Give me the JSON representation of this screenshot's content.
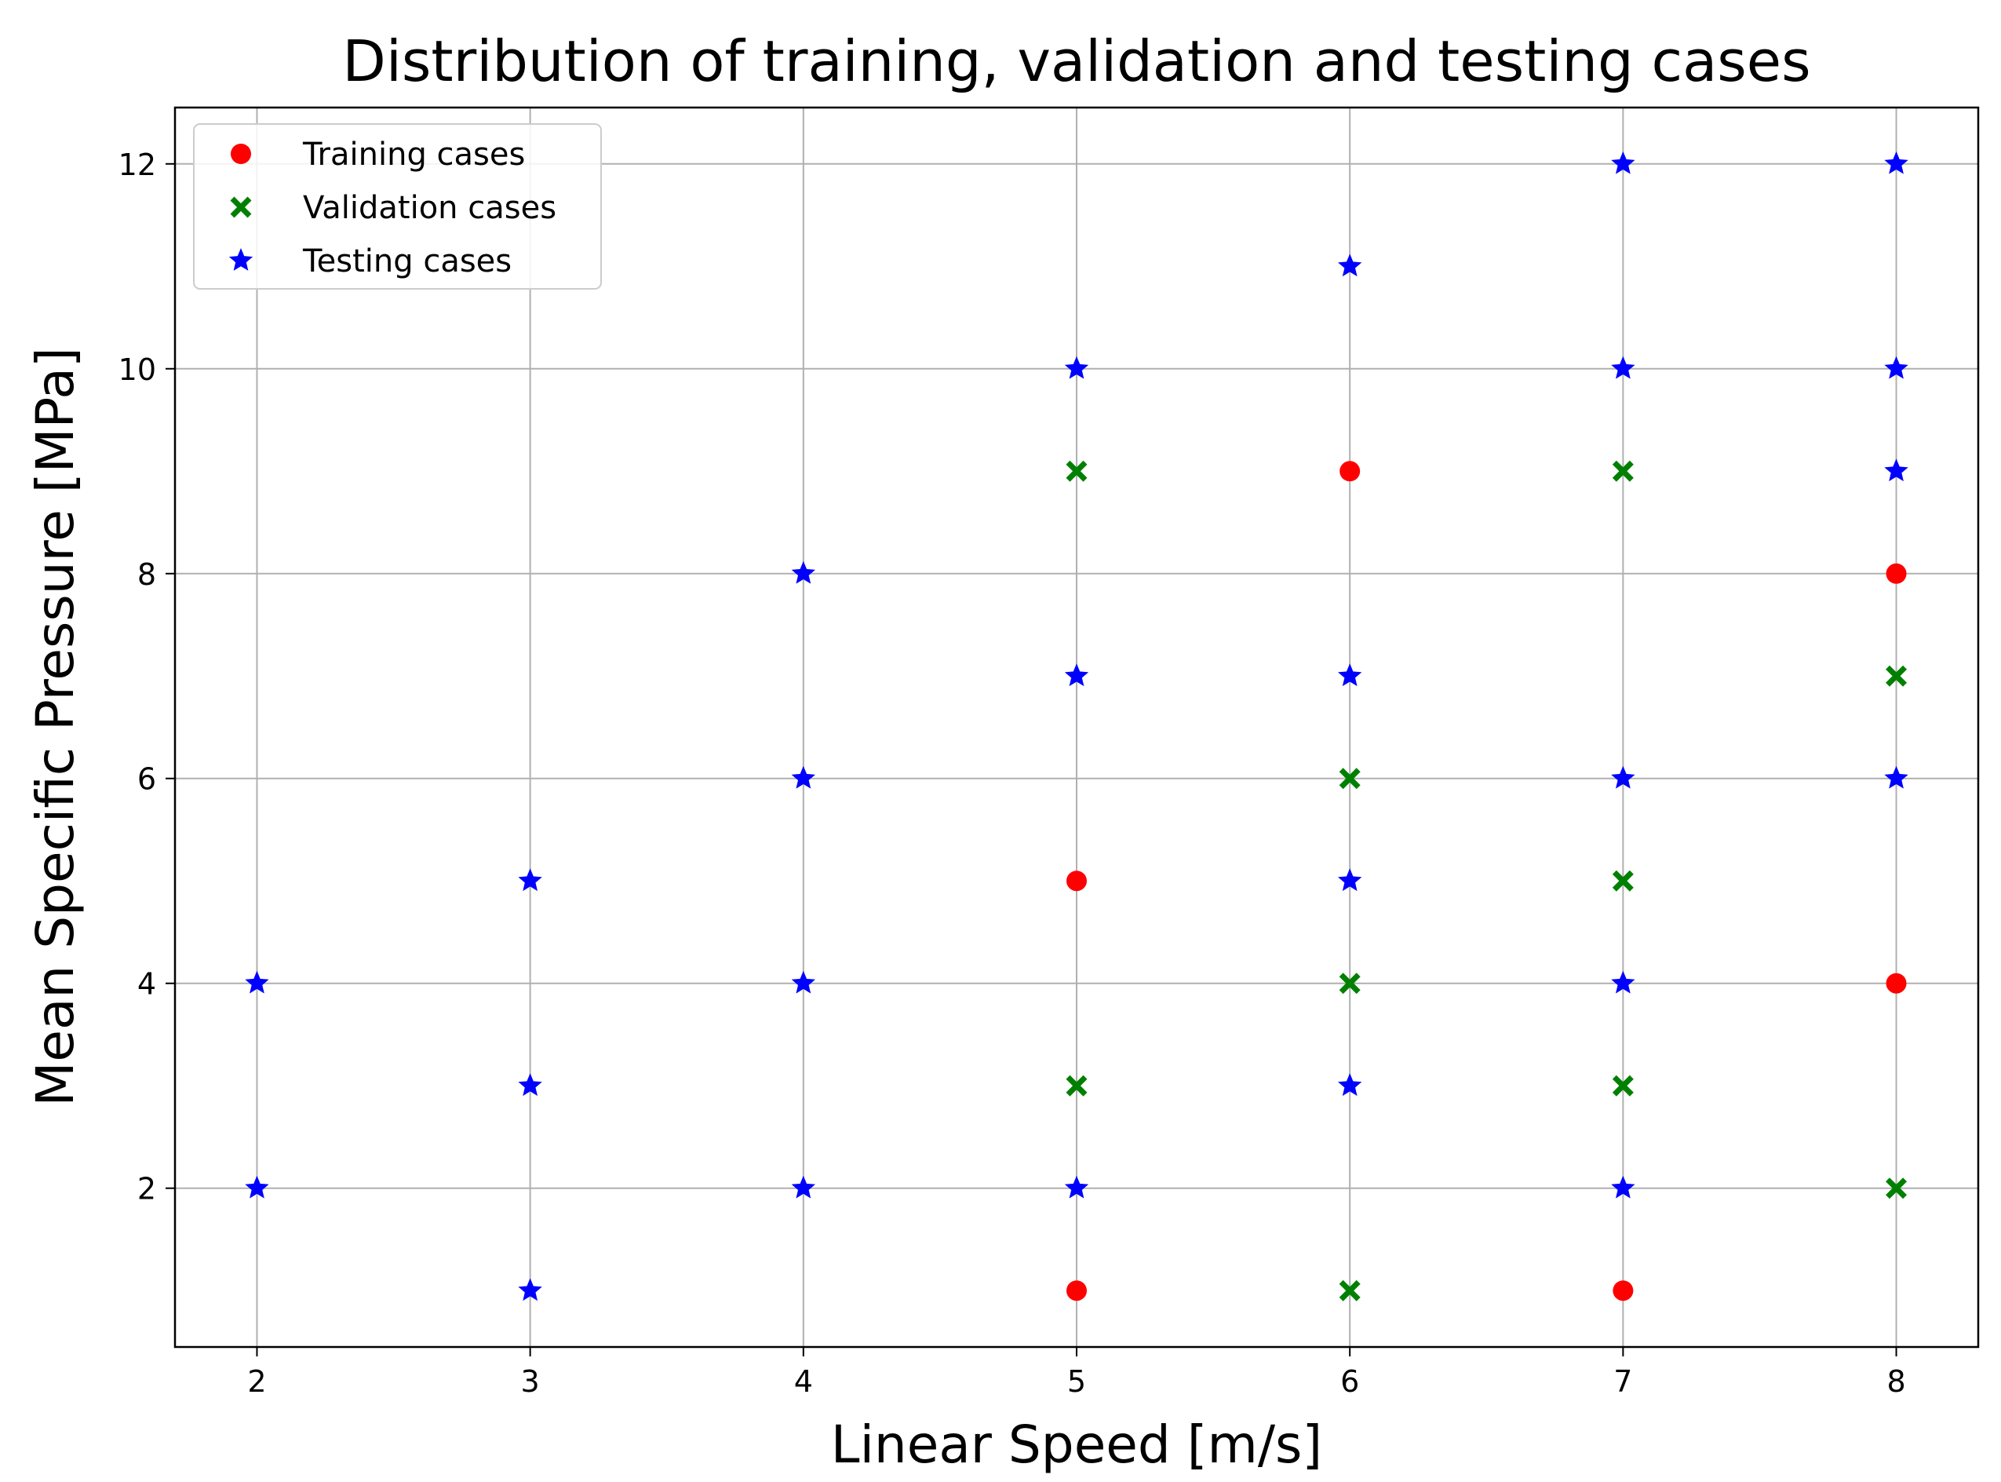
{
  "chart_data": {
    "type": "scatter",
    "title": "Distribution of training, validation and testing cases",
    "xlabel": "Linear Speed [m/s]",
    "ylabel": "Mean Specific Pressure [MPa]",
    "xlim": [
      1.7,
      8.3
    ],
    "ylim": [
      0.45,
      12.55
    ],
    "xticks": [
      2,
      3,
      4,
      5,
      6,
      7,
      8
    ],
    "yticks": [
      2,
      4,
      6,
      8,
      10,
      12
    ],
    "grid": true,
    "legend_position": "top-left",
    "series": [
      {
        "name": "Training cases",
        "marker": "circle",
        "color": "#ff0000",
        "points": [
          [
            5,
            1
          ],
          [
            5,
            5
          ],
          [
            6,
            9
          ],
          [
            7,
            1
          ],
          [
            8,
            4
          ],
          [
            8,
            8
          ]
        ]
      },
      {
        "name": "Validation cases",
        "marker": "x",
        "color": "#008000",
        "points": [
          [
            5,
            3
          ],
          [
            5,
            9
          ],
          [
            6,
            1
          ],
          [
            6,
            4
          ],
          [
            6,
            6
          ],
          [
            7,
            3
          ],
          [
            7,
            5
          ],
          [
            7,
            9
          ],
          [
            8,
            2
          ],
          [
            8,
            7
          ]
        ]
      },
      {
        "name": "Testing cases",
        "marker": "star",
        "color": "#0000ff",
        "points": [
          [
            2,
            2
          ],
          [
            2,
            4
          ],
          [
            3,
            1
          ],
          [
            3,
            3
          ],
          [
            3,
            5
          ],
          [
            4,
            2
          ],
          [
            4,
            4
          ],
          [
            4,
            6
          ],
          [
            4,
            8
          ],
          [
            5,
            2
          ],
          [
            5,
            7
          ],
          [
            5,
            10
          ],
          [
            6,
            3
          ],
          [
            6,
            5
          ],
          [
            6,
            7
          ],
          [
            6,
            11
          ],
          [
            7,
            2
          ],
          [
            7,
            4
          ],
          [
            7,
            6
          ],
          [
            7,
            10
          ],
          [
            7,
            12
          ],
          [
            8,
            6
          ],
          [
            8,
            9
          ],
          [
            8,
            10
          ],
          [
            8,
            12
          ]
        ]
      }
    ]
  }
}
